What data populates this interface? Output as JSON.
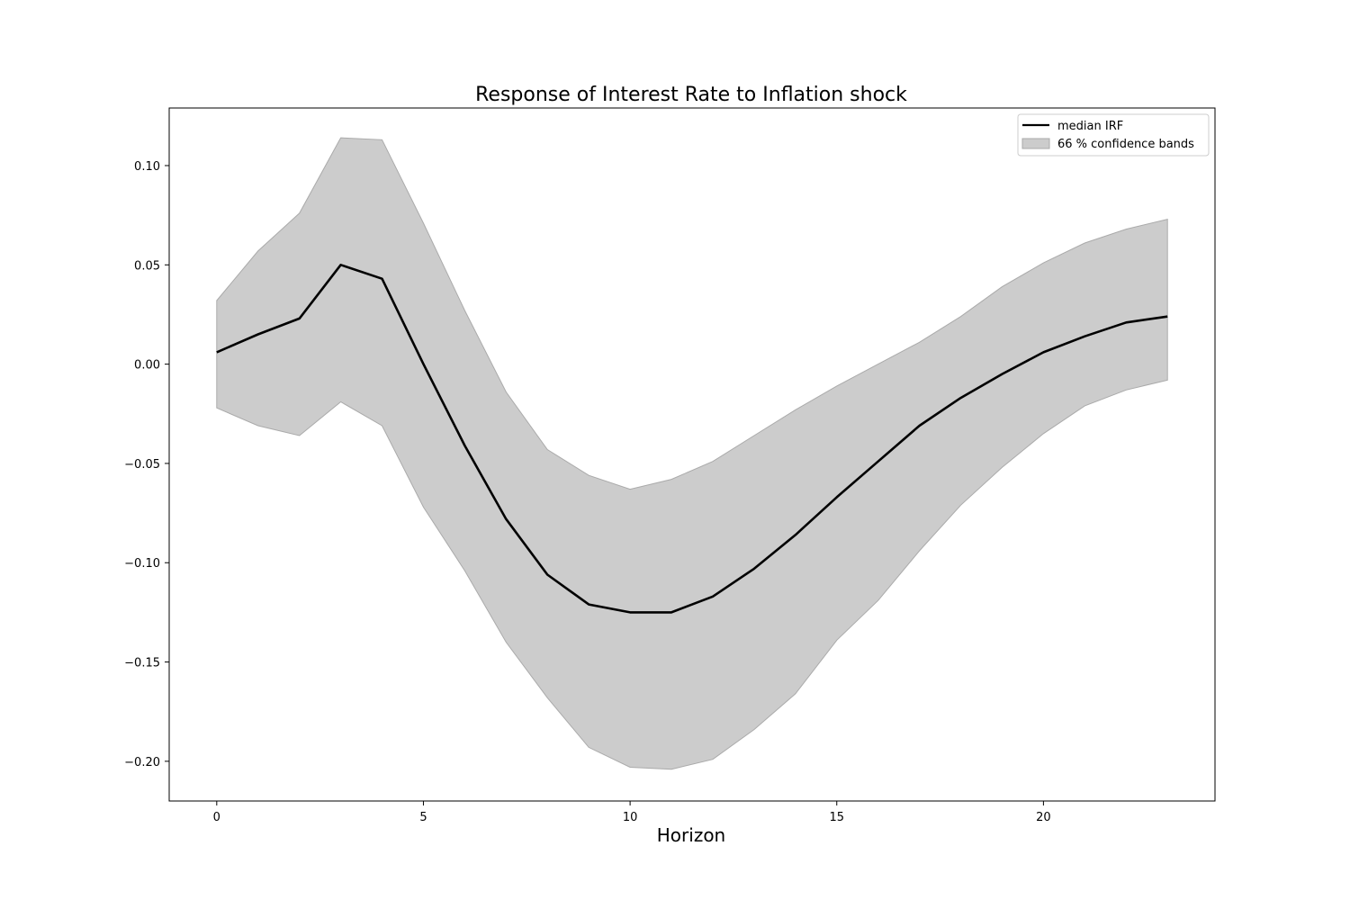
{
  "chart_data": {
    "type": "line",
    "title": "Response of Interest Rate to Inflation shock",
    "xlabel": "Horizon",
    "ylabel": "",
    "xlim": [
      -1.15,
      24.15
    ],
    "ylim": [
      -0.22,
      0.129
    ],
    "x_ticks": [
      0,
      5,
      10,
      15,
      20
    ],
    "y_ticks": [
      0.1,
      0.05,
      0.0,
      -0.05,
      -0.1,
      -0.15,
      -0.2
    ],
    "y_tick_labels": [
      "0.10",
      "0.05",
      "0.00",
      "−0.05",
      "−0.10",
      "−0.15",
      "−0.20"
    ],
    "x": [
      0,
      1,
      2,
      3,
      4,
      5,
      6,
      7,
      8,
      9,
      10,
      11,
      12,
      13,
      14,
      15,
      16,
      17,
      18,
      19,
      20,
      21,
      22,
      23
    ],
    "series": [
      {
        "name": "median IRF",
        "color": "#000000",
        "values": [
          0.006,
          0.015,
          0.023,
          0.05,
          0.043,
          0.0,
          -0.041,
          -0.078,
          -0.106,
          -0.121,
          -0.125,
          -0.125,
          -0.117,
          -0.103,
          -0.086,
          -0.067,
          -0.049,
          -0.031,
          -0.017,
          -0.005,
          0.006,
          0.014,
          0.021,
          0.024
        ]
      }
    ],
    "band": {
      "name": "66 % confidence bands",
      "color": "#cccccc",
      "edge_color": "#aaaaaa",
      "upper": [
        0.032,
        0.057,
        0.076,
        0.114,
        0.113,
        0.071,
        0.027,
        -0.014,
        -0.043,
        -0.056,
        -0.063,
        -0.058,
        -0.049,
        -0.036,
        -0.023,
        -0.011,
        -0.0,
        0.011,
        0.024,
        0.039,
        0.051,
        0.061,
        0.068,
        0.073
      ],
      "lower": [
        -0.022,
        -0.031,
        -0.036,
        -0.019,
        -0.031,
        -0.072,
        -0.104,
        -0.14,
        -0.168,
        -0.193,
        -0.203,
        -0.204,
        -0.199,
        -0.184,
        -0.166,
        -0.139,
        -0.119,
        -0.094,
        -0.071,
        -0.052,
        -0.035,
        -0.021,
        -0.013,
        -0.008
      ]
    },
    "legend_position": "top-right",
    "grid": false
  }
}
